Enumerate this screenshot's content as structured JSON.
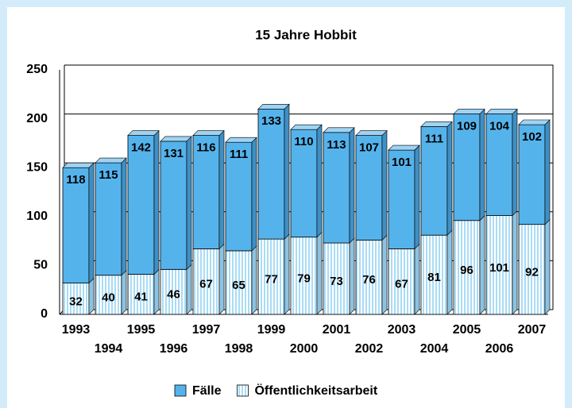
{
  "chart_data": {
    "type": "stacked_bar",
    "title": "15 Jahre Hobbit",
    "categories": [
      "1993",
      "1994",
      "1995",
      "1996",
      "1997",
      "1998",
      "1999",
      "2000",
      "2001",
      "2002",
      "2003",
      "2004",
      "2005",
      "2006",
      "2007"
    ],
    "series": [
      {
        "name": "Öffentlichkeitsarbeit",
        "color": "#a9dcf6",
        "values": [
          32,
          40,
          41,
          46,
          67,
          65,
          77,
          79,
          73,
          76,
          67,
          81,
          96,
          101,
          92
        ]
      },
      {
        "name": "Fälle",
        "color": "#55b3ec",
        "values": [
          118,
          115,
          142,
          131,
          116,
          111,
          133,
          110,
          113,
          107,
          101,
          111,
          109,
          104,
          102
        ]
      }
    ],
    "ylim": [
      0,
      250
    ],
    "yticks": [
      0,
      50,
      100,
      150,
      200,
      250
    ],
    "grid": true
  }
}
